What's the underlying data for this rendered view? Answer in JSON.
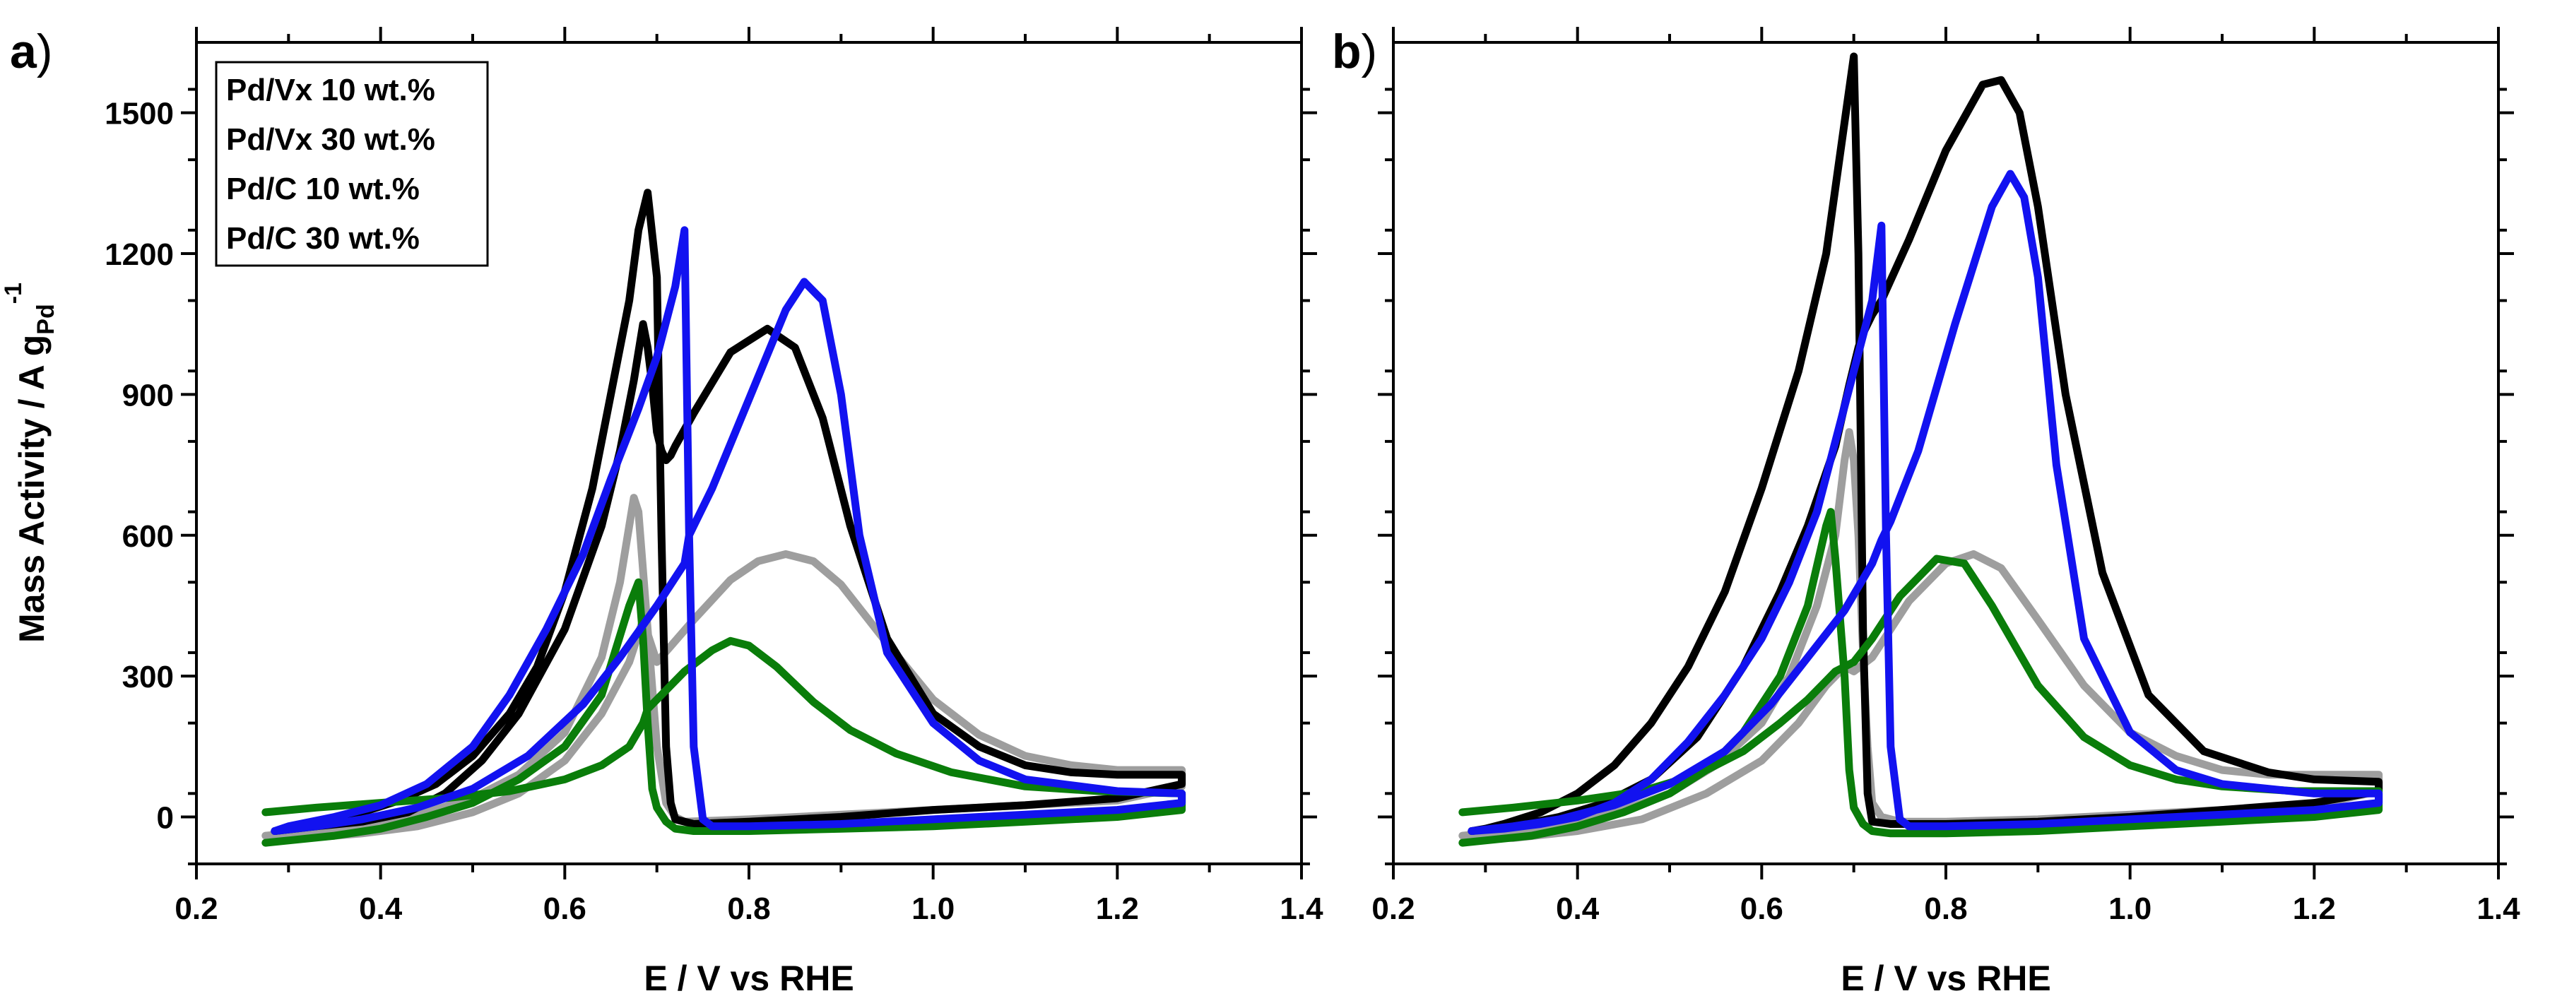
{
  "colors": {
    "Pd/Vx 10 wt.%": "#9e9e9e",
    "Pd/Vx 30 wt.%": "#000000",
    "Pd/C 10 wt.%": "#0a7d0a",
    "Pd/C 30 wt.%": "#1212f0"
  },
  "legend": {
    "entries": [
      "Pd/Vx 10 wt.%",
      "Pd/Vx 30 wt.%",
      "Pd/C 10 wt.%",
      "Pd/C 30 wt.%"
    ]
  },
  "chart_data": [
    {
      "type": "line",
      "panel_label": "a",
      "panel_paren": ")",
      "xlabel": "E / V vs RHE",
      "ylabel": "Mass Activity / A g",
      "ylabel_sub": "Pd",
      "ylabel_sup": "-1",
      "xlim": [
        0.2,
        1.4
      ],
      "ylim": [
        -100,
        1650
      ],
      "xticks": [
        0.2,
        0.4,
        0.6,
        0.8,
        1.0,
        1.2,
        1.4
      ],
      "xtick_labels": [
        "0.2",
        "0.4",
        "0.6",
        "0.8",
        "1.0",
        "1.2",
        "1.4"
      ],
      "yticks": [
        0,
        300,
        600,
        900,
        1200,
        1500
      ],
      "ytick_labels": [
        "0",
        "300",
        "600",
        "900",
        "1200",
        "1500"
      ],
      "legend_position": "top-left",
      "series": [
        {
          "name": "Pd/Vx 10 wt.%",
          "x": [
            0.275,
            0.32,
            0.38,
            0.44,
            0.5,
            0.55,
            0.6,
            0.64,
            0.67,
            0.685,
            0.7,
            0.74,
            0.78,
            0.81,
            0.84,
            0.87,
            0.9,
            0.95,
            1.0,
            1.05,
            1.1,
            1.15,
            1.2,
            1.27,
            1.27,
            1.2,
            1.1,
            1.0,
            0.9,
            0.8,
            0.73,
            0.72,
            0.71,
            0.7,
            0.69,
            0.68,
            0.675,
            0.66,
            0.64,
            0.6,
            0.55,
            0.5,
            0.45,
            0.4,
            0.35,
            0.3,
            0.275
          ],
          "y": [
            -40,
            -45,
            -35,
            -20,
            10,
            50,
            120,
            220,
            330,
            420,
            330,
            420,
            505,
            545,
            560,
            545,
            495,
            370,
            250,
            175,
            130,
            110,
            100,
            100,
            65,
            35,
            25,
            15,
            5,
            -5,
            -10,
            0,
            30,
            150,
            400,
            650,
            680,
            500,
            340,
            180,
            90,
            40,
            10,
            -10,
            -25,
            -35,
            -40
          ]
        },
        {
          "name": "Pd/Vx 30 wt.%",
          "x": [
            0.285,
            0.33,
            0.38,
            0.43,
            0.47,
            0.51,
            0.55,
            0.6,
            0.64,
            0.66,
            0.675,
            0.685,
            0.69,
            0.695,
            0.7,
            0.705,
            0.71,
            0.715,
            0.72,
            0.74,
            0.78,
            0.82,
            0.85,
            0.88,
            0.91,
            0.95,
            1.0,
            1.05,
            1.1,
            1.15,
            1.2,
            1.27,
            1.27,
            1.2,
            1.1,
            1.0,
            0.9,
            0.8,
            0.74,
            0.72,
            0.715,
            0.71,
            0.705,
            0.7,
            0.69,
            0.68,
            0.67,
            0.65,
            0.63,
            0.6,
            0.57,
            0.54,
            0.5,
            0.46,
            0.42,
            0.38,
            0.34,
            0.3,
            0.285
          ],
          "y": [
            -30,
            -20,
            -10,
            10,
            50,
            120,
            220,
            400,
            620,
            780,
            930,
            1050,
            1000,
            920,
            820,
            780,
            760,
            770,
            790,
            860,
            990,
            1040,
            1000,
            850,
            620,
            380,
            220,
            150,
            110,
            95,
            90,
            90,
            70,
            40,
            25,
            15,
            0,
            -10,
            -15,
            -5,
            30,
            150,
            600,
            1150,
            1330,
            1250,
            1100,
            900,
            700,
            480,
            320,
            220,
            130,
            70,
            35,
            10,
            -10,
            -25,
            -30
          ]
        },
        {
          "name": "Pd/C 10 wt.%",
          "x": [
            0.275,
            0.33,
            0.4,
            0.47,
            0.54,
            0.6,
            0.64,
            0.67,
            0.685,
            0.69,
            0.695,
            0.7,
            0.71,
            0.73,
            0.76,
            0.78,
            0.8,
            0.83,
            0.87,
            0.91,
            0.96,
            1.02,
            1.1,
            1.18,
            1.27,
            1.27,
            1.2,
            1.1,
            1.0,
            0.9,
            0.8,
            0.74,
            0.72,
            0.71,
            0.7,
            0.695,
            0.69,
            0.685,
            0.68,
            0.67,
            0.64,
            0.6,
            0.55,
            0.5,
            0.45,
            0.4,
            0.35,
            0.3,
            0.275
          ],
          "y": [
            10,
            20,
            30,
            40,
            55,
            80,
            110,
            150,
            200,
            230,
            240,
            250,
            270,
            310,
            355,
            375,
            365,
            320,
            245,
            185,
            135,
            95,
            65,
            55,
            50,
            15,
            0,
            -10,
            -20,
            -25,
            -30,
            -30,
            -25,
            -10,
            20,
            60,
            200,
            380,
            500,
            450,
            260,
            150,
            80,
            30,
            0,
            -25,
            -40,
            -50,
            -55
          ]
        },
        {
          "name": "Pd/C 30 wt.%",
          "x": [
            0.285,
            0.33,
            0.38,
            0.44,
            0.5,
            0.56,
            0.62,
            0.66,
            0.7,
            0.73,
            0.735,
            0.74,
            0.76,
            0.8,
            0.84,
            0.86,
            0.88,
            0.9,
            0.92,
            0.95,
            1.0,
            1.05,
            1.1,
            1.2,
            1.27,
            1.27,
            1.2,
            1.1,
            1.0,
            0.9,
            0.8,
            0.76,
            0.75,
            0.74,
            0.735,
            0.73,
            0.72,
            0.7,
            0.68,
            0.65,
            0.62,
            0.58,
            0.54,
            0.5,
            0.45,
            0.4,
            0.35,
            0.3,
            0.285
          ],
          "y": [
            -30,
            -20,
            -5,
            20,
            60,
            130,
            240,
            340,
            450,
            540,
            600,
            620,
            700,
            890,
            1080,
            1140,
            1100,
            900,
            600,
            350,
            200,
            120,
            80,
            55,
            50,
            30,
            15,
            5,
            -5,
            -15,
            -20,
            -20,
            -5,
            150,
            600,
            1250,
            1130,
            980,
            870,
            720,
            560,
            400,
            260,
            150,
            70,
            25,
            0,
            -20,
            -30
          ]
        }
      ]
    },
    {
      "type": "line",
      "panel_label": "b",
      "panel_paren": ")",
      "xlabel": "E / V vs RHE",
      "xlim": [
        0.2,
        1.4
      ],
      "ylim": [
        -100,
        1650
      ],
      "xticks": [
        0.2,
        0.4,
        0.6,
        0.8,
        1.0,
        1.2,
        1.4
      ],
      "xtick_labels": [
        "0.2",
        "0.4",
        "0.6",
        "0.8",
        "1.0",
        "1.2",
        "1.4"
      ],
      "yticks": [
        0,
        300,
        600,
        900,
        1200,
        1500
      ],
      "series": [
        {
          "name": "Pd/Vx 10 wt.%",
          "x": [
            0.275,
            0.33,
            0.4,
            0.47,
            0.54,
            0.6,
            0.64,
            0.67,
            0.69,
            0.7,
            0.72,
            0.76,
            0.8,
            0.83,
            0.86,
            0.9,
            0.95,
            1.0,
            1.05,
            1.1,
            1.15,
            1.2,
            1.27,
            1.27,
            1.2,
            1.1,
            1.0,
            0.9,
            0.8,
            0.75,
            0.73,
            0.72,
            0.715,
            0.71,
            0.705,
            0.7,
            0.695,
            0.69,
            0.68,
            0.66,
            0.63,
            0.6,
            0.55,
            0.5,
            0.45,
            0.4,
            0.35,
            0.3,
            0.275
          ],
          "y": [
            -40,
            -45,
            -30,
            -5,
            50,
            120,
            200,
            280,
            320,
            310,
            340,
            460,
            540,
            560,
            530,
            420,
            280,
            180,
            130,
            100,
            90,
            90,
            90,
            55,
            25,
            15,
            5,
            -5,
            -10,
            -10,
            0,
            30,
            150,
            350,
            600,
            760,
            820,
            760,
            600,
            450,
            300,
            200,
            110,
            50,
            15,
            -10,
            -25,
            -35,
            -40
          ]
        },
        {
          "name": "Pd/Vx 30 wt.%",
          "x": [
            0.285,
            0.33,
            0.38,
            0.43,
            0.48,
            0.53,
            0.58,
            0.62,
            0.65,
            0.68,
            0.695,
            0.705,
            0.71,
            0.715,
            0.72,
            0.73,
            0.76,
            0.8,
            0.84,
            0.86,
            0.88,
            0.9,
            0.93,
            0.97,
            1.02,
            1.08,
            1.15,
            1.2,
            1.27,
            1.27,
            1.2,
            1.1,
            1.0,
            0.9,
            0.8,
            0.74,
            0.72,
            0.715,
            0.71,
            0.705,
            0.7,
            0.69,
            0.67,
            0.64,
            0.6,
            0.56,
            0.52,
            0.48,
            0.44,
            0.4,
            0.36,
            0.32,
            0.3,
            0.285
          ],
          "y": [
            -30,
            -20,
            0,
            30,
            80,
            170,
            320,
            480,
            620,
            790,
            920,
            1000,
            1030,
            1050,
            1070,
            1100,
            1230,
            1420,
            1560,
            1570,
            1500,
            1300,
            900,
            520,
            260,
            140,
            95,
            80,
            75,
            55,
            30,
            15,
            0,
            -10,
            -15,
            -15,
            -10,
            50,
            400,
            1200,
            1620,
            1480,
            1200,
            950,
            700,
            480,
            320,
            200,
            110,
            50,
            10,
            -15,
            -25,
            -30
          ]
        },
        {
          "name": "Pd/C 10 wt.%",
          "x": [
            0.275,
            0.33,
            0.4,
            0.47,
            0.53,
            0.58,
            0.62,
            0.65,
            0.67,
            0.68,
            0.69,
            0.7,
            0.72,
            0.75,
            0.79,
            0.82,
            0.85,
            0.9,
            0.95,
            1.0,
            1.05,
            1.1,
            1.18,
            1.27,
            1.27,
            1.2,
            1.1,
            1.0,
            0.9,
            0.8,
            0.74,
            0.72,
            0.71,
            0.7,
            0.695,
            0.69,
            0.68,
            0.675,
            0.67,
            0.65,
            0.62,
            0.58,
            0.54,
            0.5,
            0.45,
            0.4,
            0.35,
            0.3,
            0.275
          ],
          "y": [
            10,
            20,
            35,
            55,
            90,
            140,
            200,
            250,
            290,
            310,
            320,
            330,
            380,
            470,
            550,
            540,
            450,
            280,
            170,
            110,
            80,
            65,
            55,
            55,
            15,
            0,
            -10,
            -20,
            -30,
            -35,
            -35,
            -30,
            -15,
            20,
            100,
            300,
            550,
            650,
            620,
            450,
            300,
            180,
            100,
            50,
            10,
            -20,
            -40,
            -50,
            -55
          ]
        },
        {
          "name": "Pd/C 30 wt.%",
          "x": [
            0.285,
            0.33,
            0.38,
            0.44,
            0.5,
            0.56,
            0.61,
            0.65,
            0.69,
            0.72,
            0.73,
            0.74,
            0.77,
            0.81,
            0.85,
            0.87,
            0.885,
            0.9,
            0.92,
            0.95,
            1.0,
            1.05,
            1.1,
            1.2,
            1.27,
            1.27,
            1.2,
            1.1,
            1.0,
            0.9,
            0.8,
            0.76,
            0.75,
            0.74,
            0.735,
            0.73,
            0.72,
            0.7,
            0.68,
            0.66,
            0.63,
            0.6,
            0.56,
            0.52,
            0.48,
            0.44,
            0.4,
            0.36,
            0.32,
            0.285
          ],
          "y": [
            -30,
            -20,
            -5,
            25,
            70,
            140,
            240,
            340,
            440,
            540,
            590,
            630,
            780,
            1050,
            1300,
            1370,
            1320,
            1150,
            750,
            380,
            180,
            100,
            70,
            50,
            50,
            30,
            15,
            5,
            -5,
            -15,
            -20,
            -20,
            -5,
            150,
            600,
            1260,
            1100,
            950,
            800,
            650,
            500,
            380,
            260,
            160,
            80,
            30,
            0,
            -15,
            -25,
            -30
          ]
        }
      ]
    }
  ]
}
